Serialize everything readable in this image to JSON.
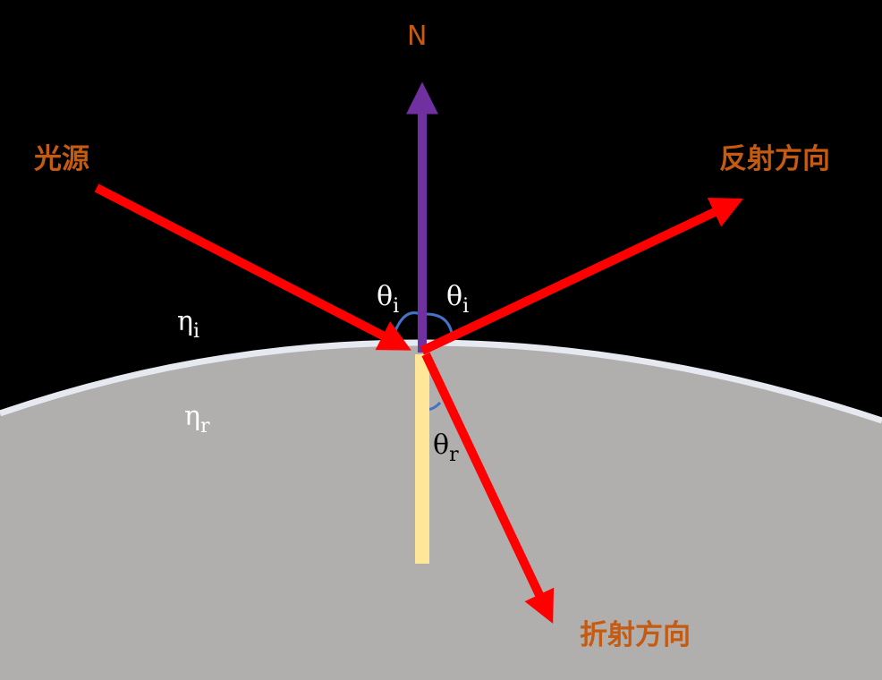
{
  "labels": {
    "normal": "N",
    "light_source": "光源",
    "reflect_dir": "反射方向",
    "refract_dir": "折射方向"
  },
  "greek": {
    "theta_left": {
      "base": "θ",
      "sub": "i"
    },
    "theta_right": {
      "base": "θ",
      "sub": "i"
    },
    "theta_refract": {
      "base": "θ",
      "sub": "r"
    },
    "eta_incident": {
      "base": "η",
      "sub": "i"
    },
    "eta_refract": {
      "base": "η",
      "sub": "r"
    }
  },
  "colors": {
    "background": "#000000",
    "surface_fill": "#b1aeae",
    "surface_edge": "#e6e9f0",
    "ray": "#ff0000",
    "normal": "#7030a0",
    "inner_normal": "#ffe699",
    "angle_arc": "#4472c4",
    "label": "#c55a11",
    "greek_light": "#ffffff",
    "greek_dark": "#000000"
  }
}
